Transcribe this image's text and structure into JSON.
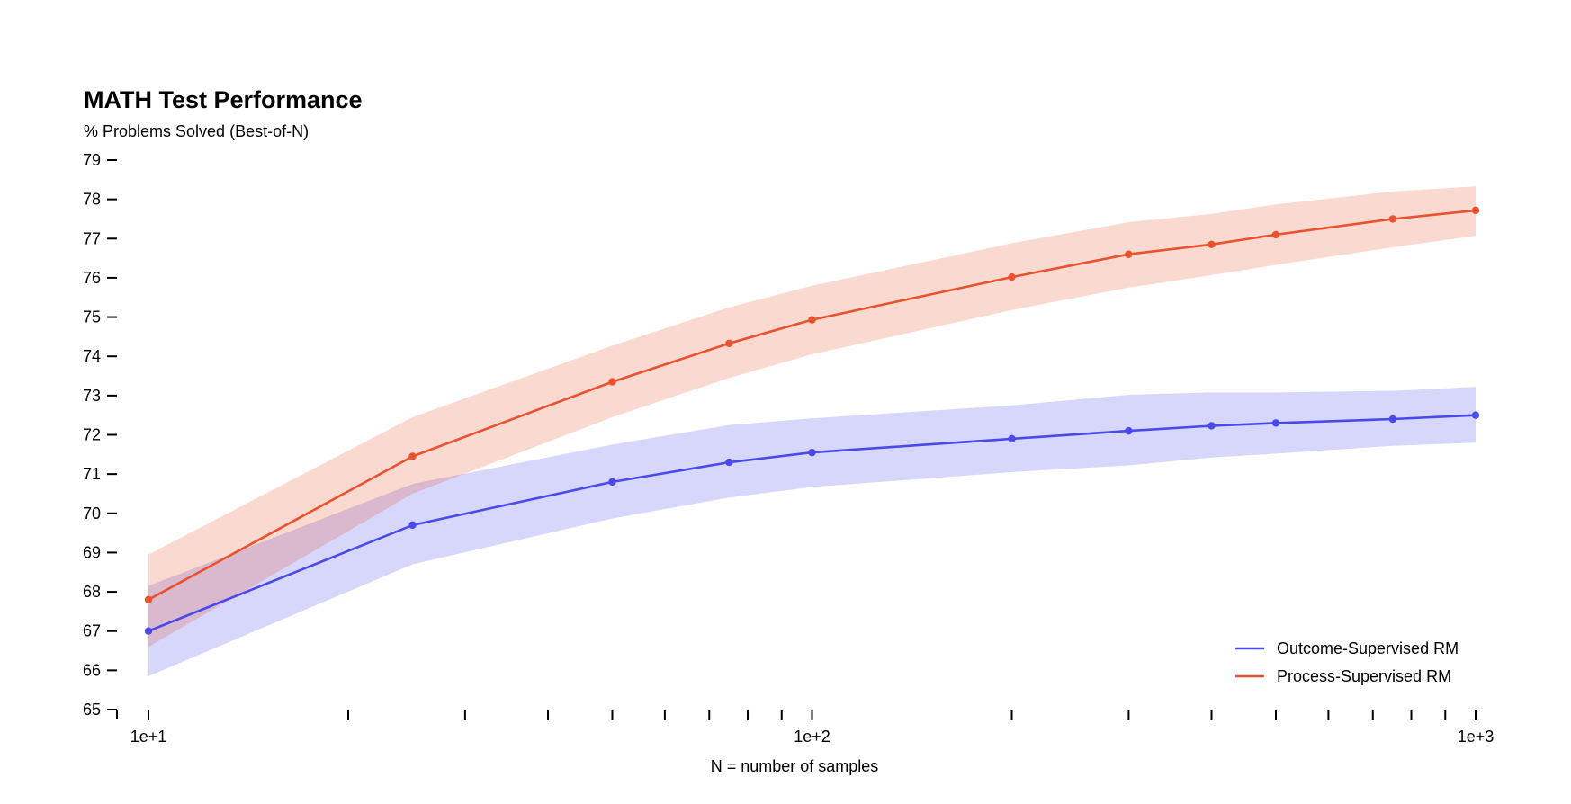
{
  "chart_data": {
    "type": "line",
    "title": "MATH Test Performance",
    "ylabel": "% Problems Solved (Best-of-N)",
    "xlabel": "N = number of samples",
    "x_scale": "log",
    "xlim": [
      10,
      1000
    ],
    "ylim": [
      65,
      79
    ],
    "y_ticks": [
      65,
      66,
      67,
      68,
      69,
      70,
      71,
      72,
      73,
      74,
      75,
      76,
      77,
      78,
      79
    ],
    "x_major_ticks": [
      10,
      100,
      1000
    ],
    "x_major_tick_labels": [
      "1e+1",
      "1e+2",
      "1e+3"
    ],
    "x_minor_ticks": [
      20,
      30,
      40,
      50,
      60,
      70,
      80,
      90,
      200,
      300,
      400,
      500,
      600,
      700,
      800,
      900
    ],
    "x": [
      10,
      25,
      50,
      75,
      100,
      200,
      300,
      400,
      500,
      750,
      1000
    ],
    "legend_position": "bottom-right",
    "series": [
      {
        "name": "Outcome-Supervised RM",
        "color": "#4a4aeb",
        "band_color": "#d6d6fa",
        "values": [
          67.0,
          69.7,
          70.8,
          71.3,
          71.55,
          71.9,
          72.1,
          72.23,
          72.3,
          72.4,
          72.5
        ],
        "lower": [
          65.85,
          68.7,
          69.87,
          70.4,
          70.67,
          71.05,
          71.22,
          71.42,
          71.52,
          71.72,
          71.8
        ],
        "upper": [
          68.15,
          70.75,
          71.75,
          72.25,
          72.42,
          72.75,
          73.02,
          73.08,
          73.08,
          73.12,
          73.22
        ]
      },
      {
        "name": "Process-Supervised RM",
        "color": "#e9522e",
        "band_color": "#f9d7cc",
        "values": [
          67.8,
          71.45,
          73.35,
          74.33,
          74.93,
          76.02,
          76.6,
          76.85,
          77.1,
          77.5,
          77.72
        ],
        "lower": [
          66.6,
          70.5,
          72.45,
          73.45,
          74.05,
          75.18,
          75.75,
          76.07,
          76.33,
          76.78,
          77.07
        ],
        "upper": [
          68.95,
          72.45,
          74.27,
          75.25,
          75.8,
          76.88,
          77.42,
          77.63,
          77.87,
          78.2,
          78.33
        ]
      }
    ]
  }
}
